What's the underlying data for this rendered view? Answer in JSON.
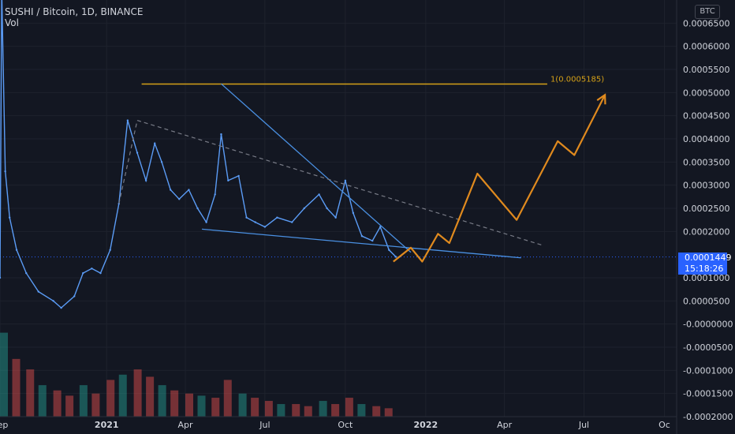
{
  "legend": {
    "symbol": "SUSHI / Bitcoin, 1D, BINANCE",
    "volume_label": "Vol"
  },
  "scale_currency": "BTC",
  "last_price": "0.0001449",
  "countdown": "15:18:26",
  "colors": {
    "background": "#131722",
    "grid": "#1e222d",
    "price_line": "#5b9cf6",
    "trendline": "#4a90e2",
    "projection": "#e08a1e",
    "fib_level": "#d4a017",
    "price_tag": "#2962ff",
    "volume_up": "#26a69a",
    "volume_down": "#ef5350"
  },
  "chart_data": {
    "type": "line",
    "y_axis": {
      "position": "right",
      "ticks": [
        "0.0006500",
        "0.0006000",
        "0.0005500",
        "0.0005000",
        "0.0004500",
        "0.0004000",
        "0.0003500",
        "0.0003000",
        "0.0002500",
        "0.0002000",
        "0.0001000",
        "0.0000500",
        "-0.0000000",
        "-0.0000500",
        "-0.0001000",
        "-0.0001500",
        "-0.0002000"
      ],
      "range": [
        -0.0002,
        0.0007
      ]
    },
    "x_axis": {
      "ticks": [
        "Sep",
        "2021",
        "Apr",
        "Jul",
        "Oct",
        "2022",
        "Apr",
        "Jul",
        "Oc"
      ],
      "range": [
        "2020-09-01",
        "2022-10-15"
      ]
    },
    "price_series": {
      "name": "SUSHI/BTC",
      "x": [
        "2020-09-01",
        "2020-09-03",
        "2020-09-07",
        "2020-09-12",
        "2020-09-20",
        "2020-10-01",
        "2020-10-15",
        "2020-11-01",
        "2020-11-10",
        "2020-11-25",
        "2020-12-05",
        "2020-12-15",
        "2020-12-25",
        "2021-01-05",
        "2021-01-15",
        "2021-01-25",
        "2021-02-05",
        "2021-02-15",
        "2021-02-25",
        "2021-03-05",
        "2021-03-15",
        "2021-03-25",
        "2021-04-05",
        "2021-04-15",
        "2021-04-25",
        "2021-05-05",
        "2021-05-12",
        "2021-05-20",
        "2021-06-01",
        "2021-06-10",
        "2021-06-20",
        "2021-07-01",
        "2021-07-15",
        "2021-08-01",
        "2021-08-15",
        "2021-09-01",
        "2021-09-10",
        "2021-09-20",
        "2021-10-01",
        "2021-10-10",
        "2021-10-20",
        "2021-11-01",
        "2021-11-10",
        "2021-11-20",
        "2021-11-28"
      ],
      "y": [
        0.0001,
        0.00072,
        0.00033,
        0.00023,
        0.00016,
        0.00011,
        7e-05,
        5e-05,
        3.5e-05,
        6e-05,
        0.00011,
        0.00012,
        0.00011,
        0.00016,
        0.00026,
        0.00044,
        0.00037,
        0.00031,
        0.00039,
        0.00035,
        0.00029,
        0.00027,
        0.00029,
        0.00025,
        0.00022,
        0.00028,
        0.00041,
        0.00031,
        0.00032,
        0.00023,
        0.00022,
        0.00021,
        0.00023,
        0.00022,
        0.00025,
        0.00028,
        0.00025,
        0.00023,
        0.00031,
        0.00024,
        0.00019,
        0.00018,
        0.00021,
        0.00016,
        0.000145
      ]
    },
    "volume_series": {
      "name": "Vol",
      "x": [
        "2020-09-01",
        "2020-09-15",
        "2020-10-01",
        "2020-10-15",
        "2020-11-01",
        "2020-11-15",
        "2020-12-01",
        "2020-12-15",
        "2021-01-01",
        "2021-01-15",
        "2021-02-01",
        "2021-02-15",
        "2021-03-01",
        "2021-03-15",
        "2021-04-01",
        "2021-04-15",
        "2021-05-01",
        "2021-05-15",
        "2021-06-01",
        "2021-06-15",
        "2021-07-01",
        "2021-07-15",
        "2021-08-01",
        "2021-08-15",
        "2021-09-01",
        "2021-09-15",
        "2021-10-01",
        "2021-10-15",
        "2021-11-01",
        "2021-11-15"
      ],
      "y": [
        0.8,
        0.55,
        0.45,
        0.3,
        0.25,
        0.2,
        0.3,
        0.22,
        0.35,
        0.4,
        0.45,
        0.38,
        0.3,
        0.25,
        0.22,
        0.2,
        0.18,
        0.35,
        0.22,
        0.18,
        0.15,
        0.12,
        0.12,
        0.1,
        0.15,
        0.12,
        0.18,
        0.12,
        0.1,
        0.08
      ]
    },
    "annotations": {
      "fib_label": "1(0.0005185)",
      "fib_level": 0.0005185,
      "fib_start": "2021-02-10",
      "fib_end": "2022-05-20",
      "last_price_line": 0.0001449,
      "wedge_upper": [
        [
          "2021-05-12",
          0.000519
        ],
        [
          "2021-12-15",
          0.000155
        ]
      ],
      "wedge_lower": [
        [
          "2021-04-20",
          0.000205
        ],
        [
          "2022-04-20",
          0.000143
        ]
      ],
      "dashed_trend": [
        [
          "2021-02-05",
          0.00044
        ],
        [
          "2022-05-15",
          0.00017
        ]
      ],
      "dashed_start": [
        [
          "2021-01-15",
          0.00026
        ],
        [
          "2021-02-05",
          0.00044
        ]
      ],
      "projection_path": [
        [
          "2021-11-25",
          0.000135
        ],
        [
          "2021-12-15",
          0.000165
        ],
        [
          "2021-12-28",
          0.000135
        ],
        [
          "2022-01-15",
          0.000195
        ],
        [
          "2022-01-28",
          0.000175
        ],
        [
          "2022-03-01",
          0.000325
        ],
        [
          "2022-04-15",
          0.000225
        ],
        [
          "2022-06-01",
          0.000395
        ],
        [
          "2022-06-20",
          0.000365
        ],
        [
          "2022-07-25",
          0.000495
        ]
      ]
    }
  }
}
